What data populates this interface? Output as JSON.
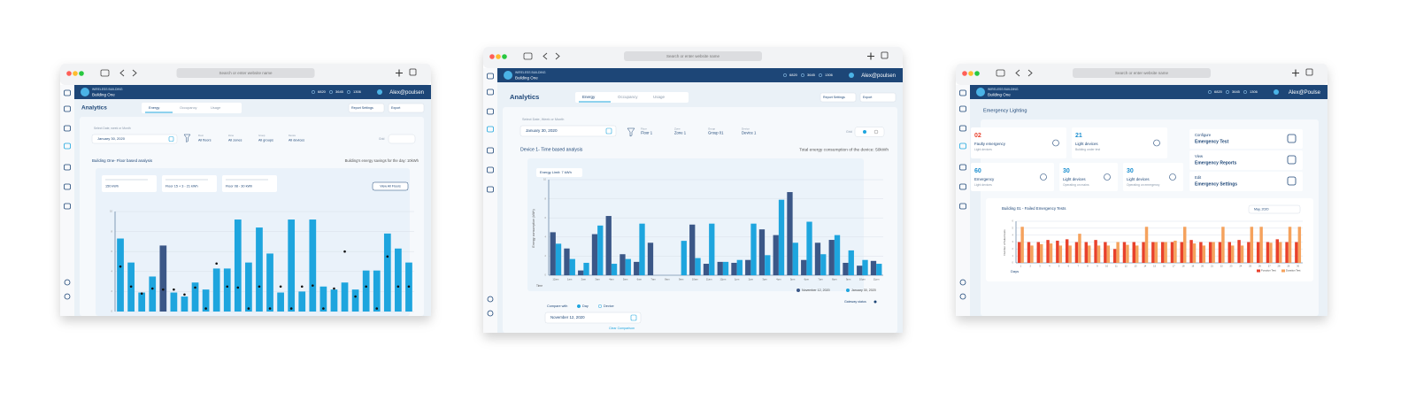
{
  "left": {
    "browser": {
      "address": "Search or enter website name"
    },
    "header": {
      "company": "WIRELESS BUILDING",
      "building": "Building One",
      "stats": [
        "6820",
        "3645",
        "1306"
      ],
      "user": "Alex@poulsen"
    },
    "title": "Analytics",
    "tabs": [
      "Energy",
      "Occupancy",
      "Usage"
    ],
    "buttons": [
      "Report Settings",
      "Export"
    ],
    "date_label": "Select Date, week or Month",
    "date": "January 30, 2020",
    "filters": [
      {
        "label": "Floor",
        "value": "All floors"
      },
      {
        "label": "Zone",
        "value": "All zones"
      },
      {
        "label": "Group",
        "value": "All groups"
      },
      {
        "label": "Device",
        "value": "All devices"
      }
    ],
    "grid_label": "Grid",
    "section": "Building One- Floor based analysis",
    "savings": "Building's energy savings for the day: 10kWh",
    "cards": [
      "150 kWh",
      "Floor 15 + 3 - 21 kWh",
      "Floor 08 - 30 kWh"
    ],
    "view_all": "View All Floors",
    "chart": {
      "type": "bar",
      "values": [
        7.3,
        4.9,
        1.9,
        3.5,
        6.6,
        1.9,
        1.5,
        2.9,
        2.2,
        4.3,
        4.3,
        9.2,
        4.9,
        8.4,
        5.8,
        1.9,
        9.2,
        2.0,
        9.2,
        2.5,
        2.2,
        2.9,
        2.2,
        4.1,
        4.1,
        7.8,
        6.3,
        4.9
      ],
      "markers": [
        4.5,
        2.5,
        1.8,
        2.3,
        2.2,
        2.2,
        1.7,
        2.4,
        0.3,
        4.8,
        2.5,
        2.4,
        0.3,
        2.5,
        0.3,
        2.5,
        0.3,
        2.5,
        2.6,
        0.3,
        2.3,
        6.0,
        1.5,
        2.5,
        0.3,
        5.5,
        2.5,
        2.5
      ],
      "color": "#1ea5de",
      "highlight_index": 4,
      "highlight_color": "#3b5787",
      "marker_color": "#111111",
      "ylim": [
        0,
        10
      ],
      "yticks": [
        0,
        2,
        4,
        6,
        8,
        10
      ],
      "grid": true
    }
  },
  "middle": {
    "browser": {
      "address": "Search or enter website name"
    },
    "header": {
      "company": "WIRELESS BUILDING",
      "building": "Building One",
      "stats": [
        "6820",
        "3645",
        "1306"
      ],
      "user": "Alex@poulsen"
    },
    "title": "Analytics",
    "tabs": [
      "Energy",
      "Occupancy",
      "Usage"
    ],
    "buttons": [
      "Report Settings",
      "Export"
    ],
    "date_label": "Select Date, Week or Month",
    "date": "January 30, 2020",
    "filters": [
      {
        "label": "Floor",
        "value": "Floor 1"
      },
      {
        "label": "Zone",
        "value": "Zone 1"
      },
      {
        "label": "Group",
        "value": "Group 01"
      },
      {
        "label": "Device",
        "value": "Device 1"
      }
    ],
    "grid_label": "Grid",
    "section": "Device 1- Time based analysis",
    "total": "Total energy consumption of the device: 50kWh",
    "chart": {
      "type": "bar",
      "title": "Energy Limit: 7 kWh",
      "y_label": "Energy consumption (kWh)",
      "x_label": "Time",
      "categories": [
        "12am",
        "1am",
        "2am",
        "3am",
        "4am",
        "5am",
        "6am",
        "7am",
        "8am",
        "9am",
        "10am",
        "11am",
        "12pm",
        "1pm",
        "2pm",
        "3pm",
        "4pm",
        "5pm",
        "6pm",
        "7pm",
        "8pm",
        "9pm",
        "10pm",
        "11pm"
      ],
      "series": [
        {
          "name": "November 12, 2020",
          "color": "#3b5787",
          "values": [
            4.5,
            2.8,
            0.5,
            4.3,
            6.2,
            2.2,
            1.4,
            3.4,
            0,
            0,
            5.3,
            1.2,
            1.4,
            1.3,
            1.6,
            4.8,
            4.2,
            8.7,
            1.6,
            3.4,
            3.7,
            1.3,
            1.0,
            1.5
          ]
        },
        {
          "name": "January 30, 2020",
          "color": "#1ea5de",
          "values": [
            3.3,
            1.7,
            1.3,
            5.2,
            1.2,
            1.7,
            5.4,
            0,
            0,
            3.6,
            1.8,
            5.4,
            1.4,
            1.6,
            5.4,
            2.1,
            7.9,
            3.4,
            5.6,
            2.2,
            4.2,
            2.6,
            1.6,
            1.2
          ]
        }
      ],
      "ylim": [
        0,
        10
      ],
      "yticks": [
        0,
        2,
        4,
        6,
        8,
        10
      ],
      "grid": true
    },
    "gateway": "Gateway status",
    "compare": {
      "label": "Compare with",
      "options": [
        "Day",
        "Device"
      ],
      "date": "November 12, 2020",
      "clear": "Clear Comparison"
    }
  },
  "right": {
    "browser": {
      "address": "Search or enter website name"
    },
    "header": {
      "company": "WIRELESS BUILDING",
      "building": "Building One",
      "stats": [
        "6820",
        "3645",
        "1306"
      ],
      "user": "Alex@Poulse"
    },
    "title": "Emergency Lighting",
    "cards": [
      {
        "value": "02",
        "label": "Faulty emergency",
        "sub": "Light devices",
        "color": "#e8412c"
      },
      {
        "value": "21",
        "label": "Light devices",
        "sub": "Building under test",
        "color": "#1b8fd0"
      },
      {
        "value": "60",
        "label": "Emergency",
        "sub": "Light devices",
        "color": "#1b8fd0"
      },
      {
        "value": "30",
        "label": "Light devices",
        "sub": "Operating on mains",
        "color": "#1b8fd0"
      },
      {
        "value": "30",
        "label": "Light devices",
        "sub": "Operating on emergency",
        "color": "#1b8fd0"
      }
    ],
    "actions": [
      {
        "top": "Configure",
        "bottom": "Emergency Test"
      },
      {
        "top": "View",
        "bottom": "Emergency Reports"
      },
      {
        "top": "Edit",
        "bottom": "Emergency Settings"
      }
    ],
    "chart": {
      "type": "bar",
      "title": "Building 01 - Failed Emergency Tests",
      "month": "May, 2020",
      "y_label": "Number of failed tests",
      "x_label": "Days",
      "categories": [
        "1",
        "2",
        "3",
        "4",
        "5",
        "6",
        "7",
        "8",
        "9",
        "10",
        "11",
        "12",
        "13",
        "14",
        "15",
        "16",
        "17",
        "18",
        "19",
        "20",
        "21",
        "22",
        "23",
        "24",
        "25",
        "26",
        "27",
        "28",
        "29",
        "30"
      ],
      "series": [
        {
          "name": "Function Test",
          "color": "#e8412c",
          "values": [
            3,
            3,
            3,
            3.3,
            3.2,
            3.4,
            3,
            3,
            3.3,
            3,
            2,
            3,
            3,
            3,
            3,
            3,
            3,
            3,
            3.3,
            3,
            3,
            3,
            3,
            3.3,
            3,
            3,
            3,
            3.4,
            3,
            3
          ]
        },
        {
          "name": "Duration Test",
          "color": "#f5a25d",
          "values": [
            5.2,
            2.5,
            2.7,
            2.8,
            2.5,
            2.5,
            4.2,
            2.5,
            2.5,
            2.5,
            3.0,
            2.6,
            2.5,
            5.2,
            3.0,
            3.0,
            3.2,
            5.2,
            2.8,
            2.5,
            3.0,
            5.2,
            2.5,
            2.5,
            5.2,
            5.2,
            2.9,
            3.0,
            5.2,
            5.2
          ]
        }
      ],
      "ylim": [
        0,
        6
      ],
      "yticks": [
        0,
        1,
        2,
        3,
        4,
        5,
        6
      ],
      "grid": true
    }
  }
}
